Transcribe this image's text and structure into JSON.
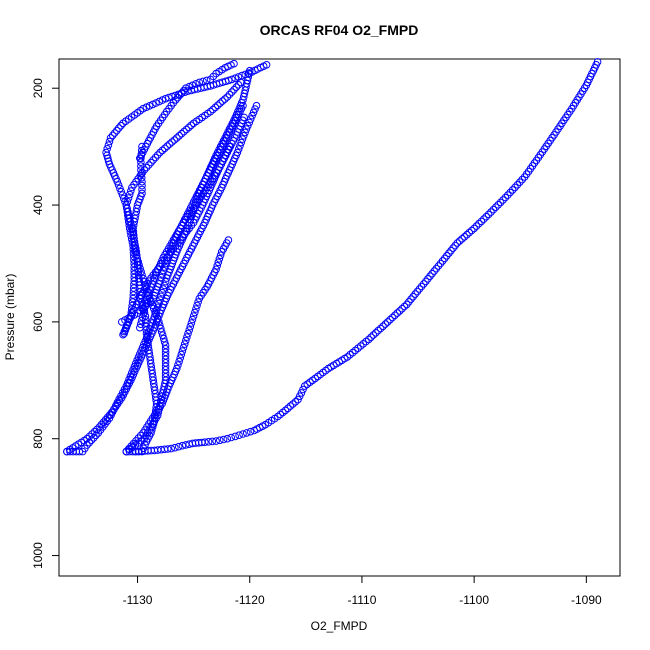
{
  "chart_data": {
    "type": "scatter",
    "title": "ORCAS RF04 O2_FMPD",
    "xlabel": "O2_FMPD",
    "ylabel": "Pressure (mbar)",
    "xlim": [
      -1137,
      -1087
    ],
    "ylim": [
      1035,
      150
    ],
    "y_reversed": true,
    "x_ticks": [
      -1130,
      -1120,
      -1110,
      -1100,
      -1090
    ],
    "y_ticks": [
      200,
      400,
      600,
      800,
      1000
    ],
    "x_tick_labels": [
      "-1130",
      "-1120",
      "-1110",
      "-1100",
      "-1090"
    ],
    "y_tick_labels": [
      "200",
      "400",
      "600",
      "800",
      "1000"
    ],
    "marker": "open-circle",
    "point_color": "#0000ff",
    "grid": false,
    "series": [
      {
        "segments": [
          {
            "x": [
              -1136.3,
              -1134.9,
              -1134.5,
              -1133.5,
              -1132.5,
              -1131.8,
              -1131.0,
              -1130.4,
              -1129.8,
              -1129.2,
              -1128.7,
              -1128.2,
              -1127.8,
              -1127.4,
              -1126.9,
              -1126.4,
              -1125.8,
              -1125.3,
              -1124.9,
              -1124.4,
              -1123.7,
              -1123.0,
              -1122.2,
              -1121.4,
              -1120.6,
              -1120.0
            ],
            "y": [
              822,
              822,
              811,
              790,
              765,
              738,
              710,
              682,
              655,
              628,
              602,
              575,
              550,
              525,
              500,
              475,
              450,
              425,
              400,
              375,
              345,
              315,
              285,
              255,
              220,
              170
            ]
          },
          {
            "x": [
              -1136.3,
              -1134.5,
              -1133.4,
              -1132.3,
              -1131.4,
              -1130.6,
              -1129.9,
              -1129.2,
              -1128.5,
              -1127.9,
              -1127.2,
              -1126.4,
              -1125.6,
              -1124.8,
              -1124.0,
              -1123.3,
              -1122.5,
              -1121.8,
              -1121.1,
              -1120.3,
              -1119.4
            ],
            "y": [
              822,
              800,
              780,
              755,
              730,
              700,
              670,
              640,
              610,
              580,
              550,
              520,
              490,
              460,
              430,
              400,
              370,
              340,
              310,
              270,
              230
            ]
          },
          {
            "x": [
              -1131.0,
              -1129.6,
              -1129.2,
              -1128.8,
              -1128.5,
              -1128.3,
              -1128.6,
              -1128.9,
              -1129.2,
              -1129.3,
              -1129.7,
              -1129.9,
              -1130.1,
              -1130.5,
              -1131.0,
              -1131.8,
              -1132.5,
              -1132.8,
              -1132.4,
              -1131.3,
              -1129.5,
              -1127.5,
              -1125.5,
              -1123.5,
              -1121.6,
              -1119.8,
              -1118.5
            ],
            "y": [
              822,
              822,
              805,
              790,
              770,
              740,
              700,
              660,
              620,
              590,
              560,
              520,
              480,
              440,
              400,
              360,
              330,
              310,
              285,
              260,
              235,
              218,
              205,
              196,
              185,
              172,
              160
            ]
          },
          {
            "x": [
              -1131.0,
              -1129.5,
              -1128.5,
              -1127.8,
              -1127.2,
              -1126.5,
              -1126.0,
              -1125.5,
              -1125.0,
              -1124.5,
              -1123.8,
              -1123.0,
              -1122.5,
              -1121.9
            ],
            "y": [
              822,
              790,
              760,
              740,
              710,
              680,
              650,
              620,
              590,
              560,
              540,
              510,
              480,
              460
            ]
          },
          {
            "x": [
              -1131.3,
              -1130.6,
              -1129.8,
              -1129.0,
              -1128.0,
              -1127.0,
              -1126.0,
              -1125.0,
              -1124.2,
              -1123.5,
              -1122.8,
              -1122.0,
              -1121.2,
              -1120.5
            ],
            "y": [
              622,
              590,
              560,
              530,
              505,
              480,
              455,
              430,
              400,
              370,
              340,
              310,
              280,
              250
            ]
          },
          {
            "x": [
              -1131.2,
              -1130.6,
              -1130.4,
              -1130.3,
              -1130.3,
              -1130.4,
              -1130.7,
              -1131.0,
              -1130.5,
              -1129.4,
              -1128.0,
              -1126.5,
              -1125.0,
              -1123.5,
              -1122.0,
              -1120.8
            ],
            "y": [
              620,
              590,
              560,
              530,
              500,
              470,
              440,
              400,
              370,
              340,
              310,
              285,
              260,
              240,
              215,
              190
            ]
          },
          {
            "x": [
              -1129.8,
              -1129.4,
              -1129.0,
              -1128.4,
              -1127.7,
              -1126.8,
              -1125.9,
              -1124.8,
              -1123.8,
              -1122.8,
              -1121.8
            ],
            "y": [
              610,
              580,
              550,
              520,
              490,
              460,
              430,
              400,
              370,
              340,
              300
            ]
          },
          {
            "x": [
              -1131.4,
              -1130.0,
              -1128.6,
              -1128.0,
              -1127.5,
              -1126.9,
              -1126.2,
              -1125.4,
              -1124.6,
              -1123.8,
              -1123.0,
              -1122.2,
              -1121.4,
              -1120.6
            ],
            "y": [
              600,
              585,
              560,
              530,
              500,
              470,
              440,
              410,
              380,
              350,
              320,
              290,
              260,
              230
            ]
          },
          {
            "x": [
              -1131.0,
              -1129.4,
              -1128.2,
              -1127.5,
              -1127.5,
              -1128.1,
              -1128.9,
              -1129.6,
              -1130.2,
              -1130.4,
              -1130.0,
              -1129.6,
              -1129.6,
              -1129.7,
              -1129.7,
              -1129.6
            ],
            "y": [
              822,
              800,
              760,
              700,
              640,
              600,
              560,
              520,
              480,
              440,
              400,
              380,
              360,
              340,
              320,
              300
            ]
          },
          {
            "x": [
              -1129.8,
              -1129.0,
              -1128.3,
              -1127.4,
              -1126.6,
              -1125.7,
              -1124.5,
              -1123.5,
              -1123.0,
              -1122.2,
              -1121.4
            ],
            "y": [
              320,
              290,
              265,
              240,
              220,
              200,
              190,
              185,
              175,
              165,
              158
            ]
          }
        ]
      },
      {
        "segments": [
          {
            "x": [
              -1130.2,
              -1128.5,
              -1127.0,
              -1126.0,
              -1125.1,
              -1124.0,
              -1123.0,
              -1122.0,
              -1121.3,
              -1120.6,
              -1119.6,
              -1118.6,
              -1117.5,
              -1116.6,
              -1115.7,
              -1115.1,
              -1114.4,
              -1113.0,
              -1111.3,
              -1109.4,
              -1107.7,
              -1106.0,
              -1104.5,
              -1103.0,
              -1101.5,
              -1100.0,
              -1098.5,
              -1097.0,
              -1095.5,
              -1094.1,
              -1092.7,
              -1091.3,
              -1090.0,
              -1089.0
            ],
            "y": [
              822,
              820,
              817,
              812,
              808,
              806,
              804,
              800,
              796,
              792,
              786,
              776,
              762,
              748,
              733,
              710,
              700,
              680,
              660,
              630,
              600,
              570,
              535,
              500,
              465,
              440,
              412,
              383,
              352,
              314,
              275,
              235,
              195,
              155
            ]
          }
        ]
      }
    ]
  }
}
